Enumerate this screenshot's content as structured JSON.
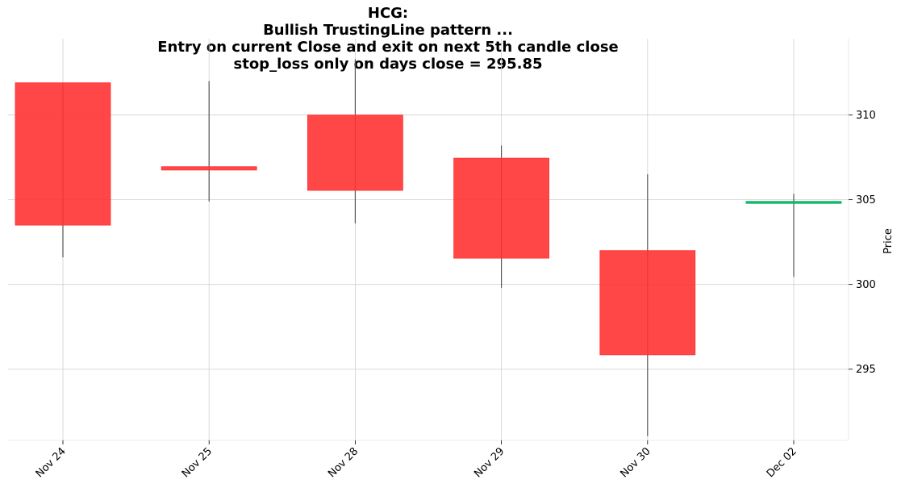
{
  "chart_data": {
    "type": "candlestick",
    "title_lines": [
      "HCG:",
      "Bullish TrustingLine pattern ...",
      "Entry on current Close and exit on next 5th candle close",
      "stop_loss only on days close = 295.85"
    ],
    "ylabel": "Price",
    "ylim": [
      290.8,
      314.5
    ],
    "yticks": [
      295,
      300,
      305,
      310
    ],
    "ytick_labels": [
      "295",
      "300",
      "305",
      "310"
    ],
    "grid": true,
    "colors": {
      "down": "#ff3333",
      "up": "#00b060",
      "wick": "#555555",
      "grid": "#d0d0d0"
    },
    "candles": [
      {
        "date": "Nov 24",
        "open": 311.9,
        "high": 311.9,
        "low": 301.6,
        "close": 303.5,
        "direction": "down"
      },
      {
        "date": "Nov 25",
        "open": 306.95,
        "high": 312.0,
        "low": 304.9,
        "close": 306.75,
        "direction": "down"
      },
      {
        "date": "Nov 28",
        "open": 310.0,
        "high": 313.3,
        "low": 303.6,
        "close": 305.55,
        "direction": "down"
      },
      {
        "date": "Nov 29",
        "open": 307.45,
        "high": 308.2,
        "low": 299.8,
        "close": 301.55,
        "direction": "down"
      },
      {
        "date": "Nov 30",
        "open": 302.0,
        "high": 306.5,
        "low": 291.05,
        "close": 295.85,
        "direction": "down"
      },
      {
        "date": "Dec 02",
        "open": 304.85,
        "high": 305.35,
        "low": 300.45,
        "close": 304.9,
        "direction": "up"
      }
    ]
  }
}
